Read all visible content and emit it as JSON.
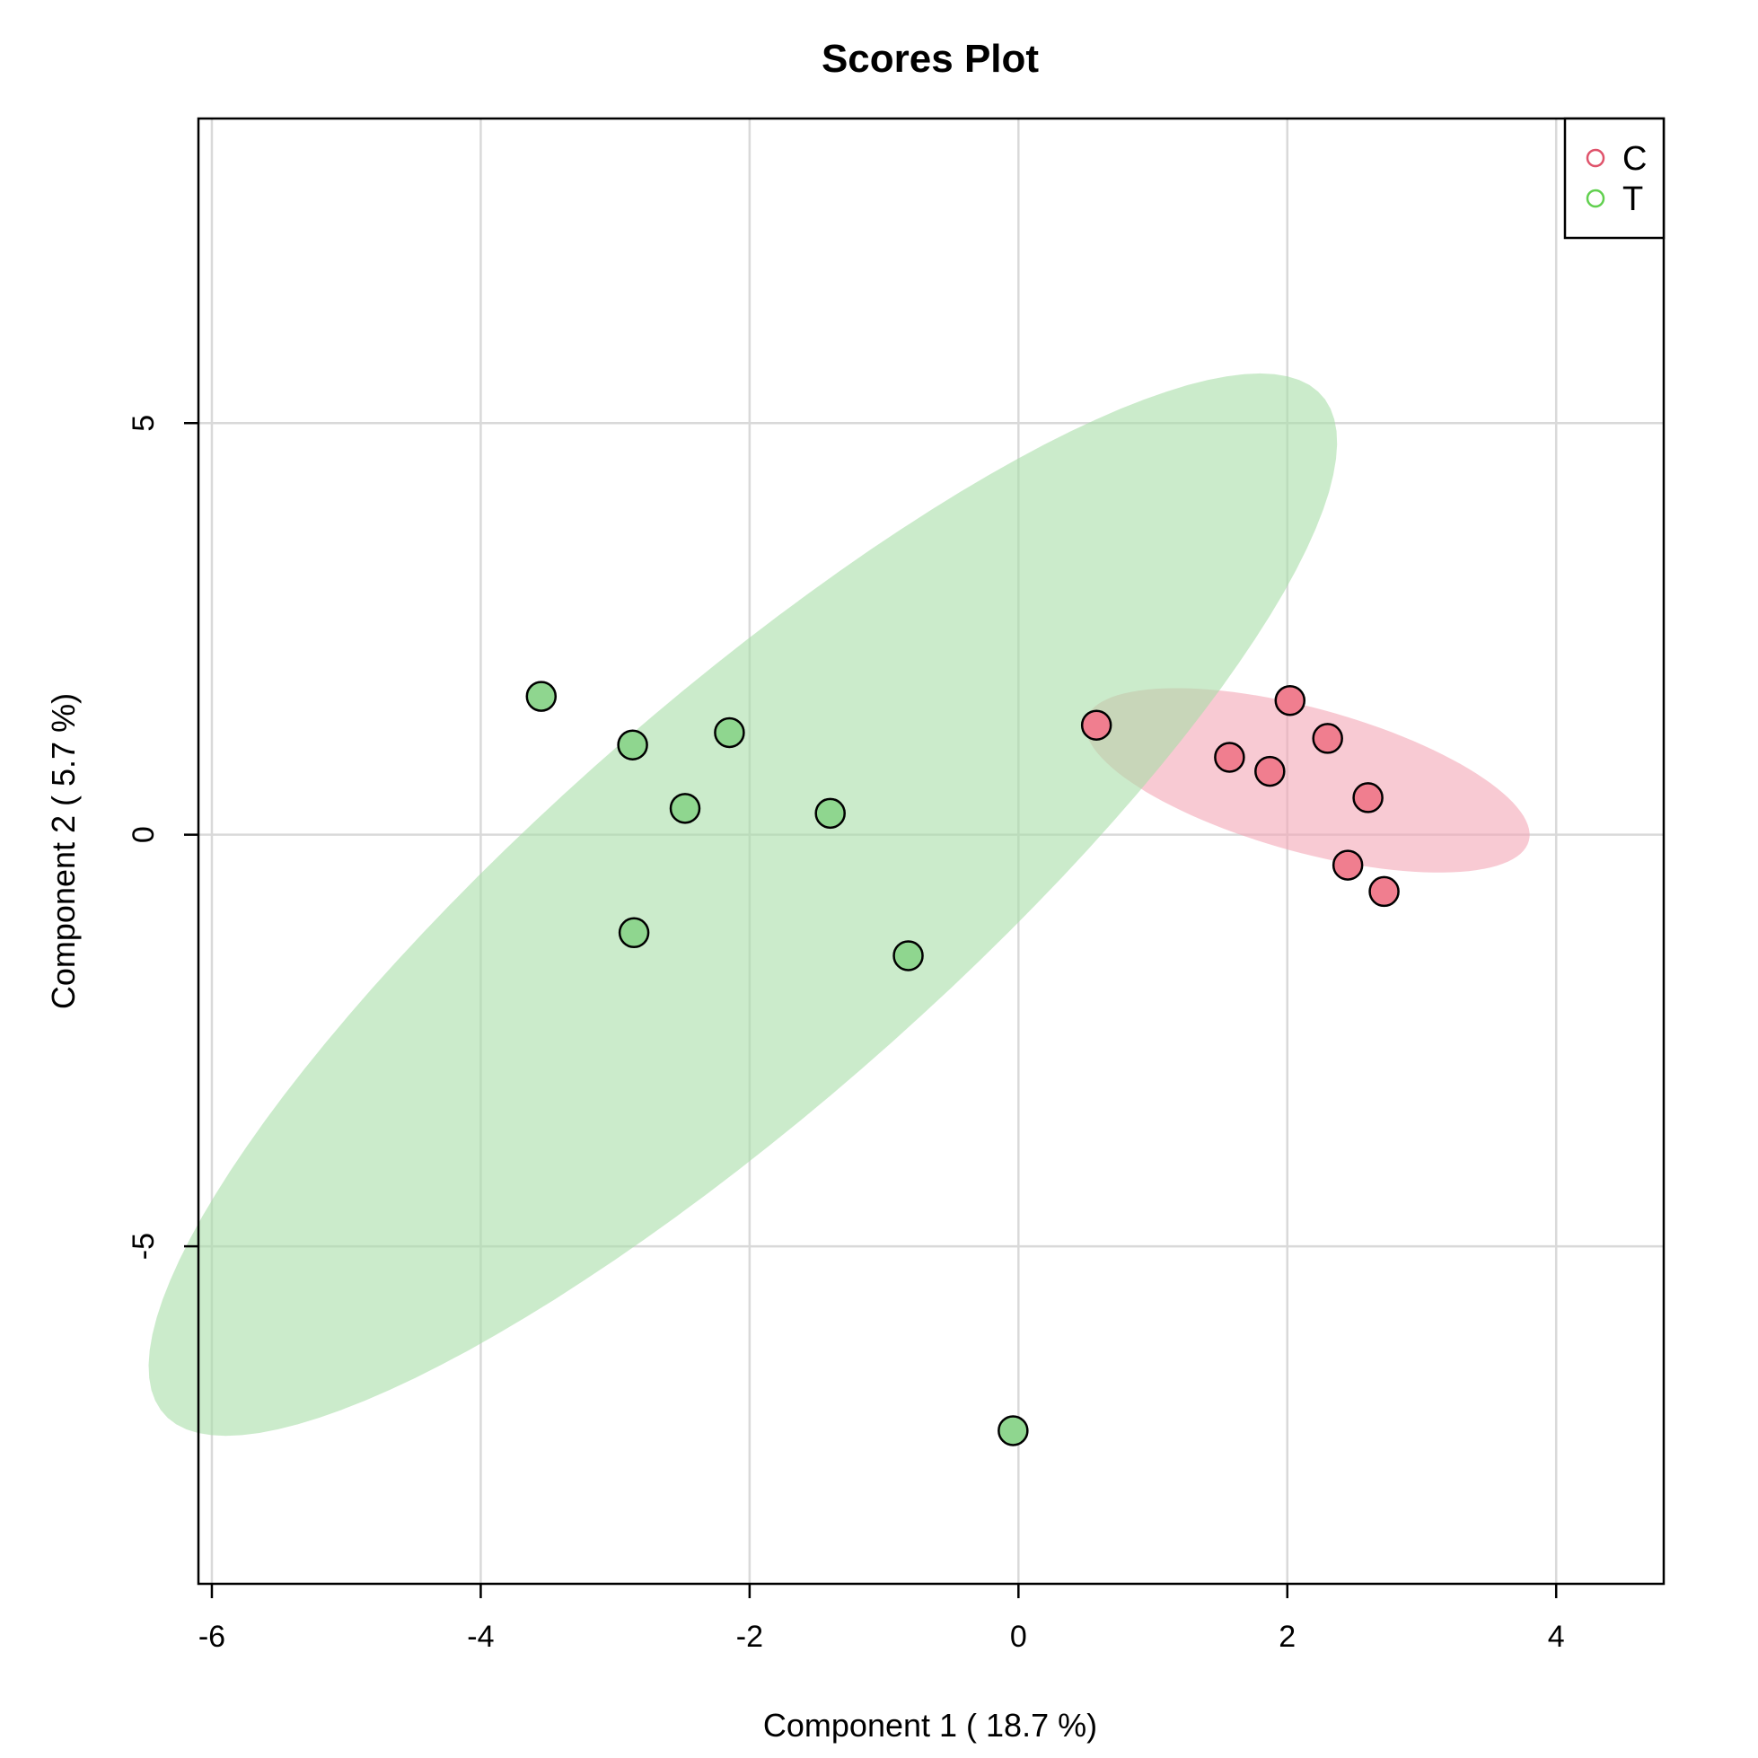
{
  "chart_data": {
    "type": "scatter",
    "title": "Scores Plot",
    "xlabel": "Component 1 ( 18.7 %)",
    "ylabel": "Component 2 ( 5.7 %)",
    "xlim": [
      -6.1,
      4.8
    ],
    "ylim": [
      -9.1,
      8.7
    ],
    "xticks": [
      -6,
      -4,
      -2,
      0,
      2,
      4
    ],
    "yticks": [
      -5,
      0,
      5
    ],
    "xtick_labels": [
      "-6",
      "-4",
      "-2",
      "0",
      "2",
      "4"
    ],
    "ytick_labels": [
      "-5",
      "0",
      "5"
    ],
    "grid": true,
    "legend_position": "top-right",
    "series": [
      {
        "name": "C",
        "color": "#DF536B",
        "fill": "#F07E8F",
        "ellipse_color": "#F4A6B6",
        "points": [
          {
            "x": 0.58,
            "y": 1.33
          },
          {
            "x": 1.57,
            "y": 0.94
          },
          {
            "x": 1.87,
            "y": 0.77
          },
          {
            "x": 2.02,
            "y": 1.63
          },
          {
            "x": 2.3,
            "y": 1.17
          },
          {
            "x": 2.6,
            "y": 0.45
          },
          {
            "x": 2.45,
            "y": -0.37
          },
          {
            "x": 2.72,
            "y": -0.69
          }
        ],
        "ellipse": {
          "cx": 2.15,
          "cy": 0.66,
          "rx": 1.82,
          "ry": 0.82,
          "angle": -28
        }
      },
      {
        "name": "T",
        "color": "#61D04F",
        "fill": "#8FD68F",
        "ellipse_color": "#A8DEA8",
        "points": [
          {
            "x": -3.55,
            "y": 1.68
          },
          {
            "x": -2.87,
            "y": 1.09
          },
          {
            "x": -2.15,
            "y": 1.24
          },
          {
            "x": -2.48,
            "y": 0.32
          },
          {
            "x": -1.4,
            "y": 0.26
          },
          {
            "x": -2.86,
            "y": -1.19
          },
          {
            "x": -0.82,
            "y": -1.47
          },
          {
            "x": -0.04,
            "y": -7.24
          }
        ],
        "ellipse": {
          "cx": -2.05,
          "cy": -0.85,
          "rx": 7.6,
          "ry": 1.85,
          "angle": 57
        }
      }
    ]
  }
}
